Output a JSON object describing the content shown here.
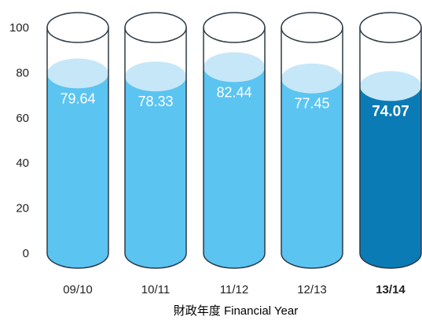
{
  "chart_data": {
    "type": "bar",
    "categories": [
      "09/10",
      "10/11",
      "11/12",
      "12/13",
      "13/14"
    ],
    "values": [
      79.64,
      78.33,
      82.44,
      77.45,
      74.07
    ],
    "value_labels": [
      "79.64",
      "78.33",
      "82.44",
      "77.45",
      "74.07"
    ],
    "highlight_index": 4,
    "title": "",
    "xlabel": "財政年度 Financial Year",
    "ylabel": "",
    "ylim": [
      0,
      100
    ],
    "y_ticks": [
      "0",
      "20",
      "40",
      "60",
      "80",
      "100"
    ],
    "grid": false,
    "colors": {
      "liquid": "#5bc4f1",
      "liquid_surface": "#c6e7f8",
      "highlight_liquid": "#0a7bb5",
      "highlight_surface": "#c6e7f8",
      "outline": "#2f3b47",
      "label": "#ffffff",
      "axis_text": "#222222"
    }
  }
}
